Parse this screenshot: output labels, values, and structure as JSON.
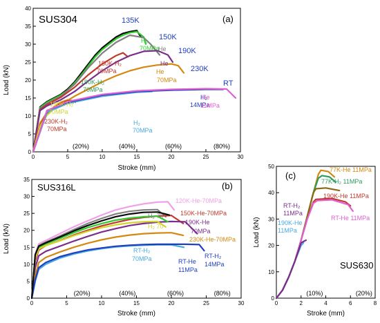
{
  "chart_data": [
    {
      "type": "line",
      "panel": "(a)",
      "material": "SUS304",
      "xlabel": "Stroke (mm)",
      "ylabel": "Load (kN)",
      "xlim": [
        0,
        30
      ],
      "ylim": [
        0,
        40
      ],
      "xticks": [
        0,
        5,
        10,
        15,
        20,
        25,
        30
      ],
      "yticks": [
        0,
        5,
        10,
        15,
        20,
        25,
        30,
        35,
        40
      ],
      "strain_markers": [
        "(20%)",
        "(40%)",
        "(60%)",
        "(80%)"
      ],
      "strain_marker_x": [
        6.9,
        13.6,
        20.3,
        27.3
      ],
      "series": [
        {
          "color": "#0a0a0a",
          "x": [
            0,
            1,
            2,
            3,
            4,
            5,
            6,
            7,
            8,
            9,
            10,
            11,
            12,
            13,
            14,
            15,
            15.6
          ],
          "y": [
            0,
            12.5,
            14,
            15,
            16,
            17.5,
            19.5,
            22,
            24.5,
            27,
            29,
            30.5,
            32,
            33,
            33.5,
            33.8,
            32
          ]
        },
        {
          "color": "#2ecc2e",
          "x": [
            0,
            1,
            2,
            3,
            4,
            5,
            6,
            7,
            8,
            9,
            10,
            11,
            12,
            13,
            14,
            15,
            16,
            16.3
          ],
          "y": [
            0,
            12.3,
            13.8,
            14.8,
            15.8,
            17.2,
            19.2,
            21.5,
            24,
            26.5,
            28.5,
            30,
            31.5,
            32.5,
            33.2,
            33.5,
            32,
            30
          ]
        },
        {
          "color": "#808080",
          "x": [
            0,
            1,
            2,
            4,
            6,
            8,
            10,
            12,
            14,
            16,
            17,
            18.3
          ],
          "y": [
            0,
            12,
            13.5,
            15.5,
            18.8,
            23.5,
            27.5,
            30.5,
            32.5,
            31.8,
            30,
            27
          ]
        },
        {
          "color": "#c0392b",
          "x": [
            0,
            1,
            2,
            4,
            6,
            8,
            10,
            12,
            13,
            13.7
          ],
          "y": [
            0,
            11.8,
            13.2,
            15.2,
            18,
            21.5,
            24.5,
            26.8,
            27.6,
            26.5
          ]
        },
        {
          "color": "#7b2d8b",
          "x": [
            0,
            1,
            2,
            4,
            6,
            8,
            10,
            12,
            14,
            16,
            18,
            19.5,
            20.2
          ],
          "y": [
            0,
            11.5,
            12.8,
            14.5,
            16.8,
            19.8,
            22.6,
            25,
            26.8,
            28,
            28.2,
            27,
            25
          ]
        },
        {
          "color": "#d4880f",
          "x": [
            0,
            1,
            2,
            4,
            6,
            8,
            10,
            12,
            14,
            16,
            18,
            20,
            21,
            21.8
          ],
          "y": [
            0,
            8,
            11,
            13.2,
            15.5,
            17.5,
            19.5,
            21.2,
            22.6,
            23.6,
            24.2,
            24.5,
            24,
            22
          ]
        },
        {
          "color": "#d4880f",
          "x": [
            0,
            1,
            2,
            3,
            4,
            5,
            5.5
          ],
          "y": [
            0,
            7.5,
            10.5,
            12.5,
            13.8,
            14.5,
            14.2
          ]
        },
        {
          "color": "#c0392b",
          "x": [
            0,
            1,
            2,
            3,
            4,
            5,
            5.6,
            6.1
          ],
          "y": [
            0,
            7.5,
            10.5,
            12.3,
            13.5,
            14.2,
            14.3,
            13.8
          ]
        },
        {
          "color": "#d4d42e",
          "x": [
            0,
            1,
            2,
            3,
            4,
            5,
            5.8
          ],
          "y": [
            0,
            7.2,
            10.2,
            12,
            13.2,
            14,
            13.6
          ]
        },
        {
          "color": "#4aa8e0",
          "x": [
            0,
            2,
            5,
            10,
            15,
            17.2
          ],
          "y": [
            0,
            11,
            13.5,
            15.5,
            16.6,
            16.8
          ]
        },
        {
          "color": "#1f3fbf",
          "x": [
            0,
            2,
            5,
            10,
            15,
            20,
            25,
            27.5
          ],
          "y": [
            0,
            11.5,
            13.8,
            15.8,
            16.8,
            17.2,
            17.4,
            17.4
          ]
        },
        {
          "color": "#e060d0",
          "x": [
            0,
            2,
            5,
            10,
            15,
            20,
            25,
            28,
            29.3
          ],
          "y": [
            0,
            11.5,
            14,
            16,
            17,
            17.4,
            17.6,
            17.5,
            15
          ]
        }
      ],
      "annotations": [
        {
          "text": "135K",
          "color": "#1f3fbf"
        },
        {
          "text": "150K",
          "color": "#1f3fbf"
        },
        {
          "text": "190K",
          "color": "#1f3fbf"
        },
        {
          "text": "230K",
          "color": "#1f3fbf"
        },
        {
          "text": "RT",
          "color": "#1f3fbf"
        },
        {
          "text": "H2",
          "color": "#2ecc2e"
        },
        {
          "text": "70MPa",
          "color": "#2ecc2e"
        },
        {
          "text": "He",
          "color": "#808080"
        },
        {
          "text": "He",
          "color": "#7b2d8b"
        },
        {
          "text": "He",
          "color": "#d4880f"
        },
        {
          "text": "70MPa",
          "color": "#d4880f"
        },
        {
          "text": "H2",
          "color": "#1f3fbf"
        },
        {
          "text": "14MPa",
          "color": "#1f3fbf"
        },
        {
          "text": "He",
          "color": "#e060d0"
        },
        {
          "text": "11MPa",
          "color": "#e060d0"
        },
        {
          "text": "H2",
          "color": "#4aa8e0"
        },
        {
          "text": "70MPa",
          "color": "#4aa8e0"
        },
        {
          "text": "230K-H2",
          "color": "#c0392b"
        },
        {
          "text": "70MPa",
          "color": "#c0392b"
        },
        {
          "text": "150K-H2",
          "color": "#c0392b"
        },
        {
          "text": "70MPa",
          "color": "#c0392b"
        },
        {
          "text": "190K-H2",
          "color": "#2a9d5a"
        },
        {
          "text": "70MPa",
          "color": "#2a9d5a"
        },
        {
          "text": "190K-H2",
          "color": "#d4d42e"
        },
        {
          "text": "70MPa",
          "color": "#d4d42e"
        }
      ]
    },
    {
      "type": "line",
      "panel": "(b)",
      "material": "SUS316L",
      "xlabel": "Stroke (mm)",
      "ylabel": "Load (kN)",
      "xlim": [
        0,
        30
      ],
      "ylim": [
        0,
        35
      ],
      "xticks": [
        0,
        5,
        10,
        15,
        20,
        25,
        30
      ],
      "yticks": [
        0,
        5,
        10,
        15,
        20,
        25,
        30,
        35
      ],
      "strain_markers": [
        "(20%)",
        "(40%)",
        "(60%)",
        "(80%)"
      ],
      "strain_marker_x": [
        7.2,
        13.7,
        20.6,
        27.3
      ],
      "series": [
        {
          "color": "#f0a0e8",
          "x": [
            0,
            0.5,
            1,
            2,
            4,
            6,
            8,
            10,
            12,
            14,
            16,
            18,
            19.5,
            20.4
          ],
          "y": [
            0,
            13,
            16,
            17,
            19,
            21,
            22.8,
            24.5,
            26,
            27,
            27.8,
            28.3,
            28.4,
            26
          ]
        },
        {
          "color": "#808080",
          "x": [
            0,
            0.5,
            1,
            2,
            4,
            6,
            8,
            10,
            12,
            14,
            16,
            18,
            19.2
          ],
          "y": [
            0,
            12.8,
            15.5,
            16.5,
            18.3,
            20.2,
            22,
            23.5,
            24.8,
            25.6,
            26,
            26.1,
            24
          ]
        },
        {
          "color": "#c0392b",
          "x": [
            0,
            0.5,
            1,
            2,
            4,
            6,
            8,
            10,
            12,
            14,
            16,
            18,
            20,
            21.7
          ],
          "y": [
            0,
            11,
            14.2,
            15.5,
            17,
            18.6,
            20,
            21.3,
            22.3,
            23.2,
            23.8,
            24.2,
            24.4,
            22
          ]
        },
        {
          "color": "#7b2d8b",
          "x": [
            0,
            0.5,
            1,
            2,
            4,
            6,
            8,
            10,
            12,
            14,
            16,
            18,
            20,
            22,
            23.7
          ],
          "y": [
            0,
            9,
            12.5,
            13.8,
            15.3,
            16.8,
            18.2,
            19.5,
            20.5,
            21.4,
            22,
            22.4,
            22.6,
            22.5,
            19
          ]
        },
        {
          "color": "#2ecc2e",
          "x": [
            0,
            0.5,
            1,
            2,
            4,
            6,
            8,
            10,
            12,
            14,
            16,
            18,
            19.5
          ],
          "y": [
            0,
            12.5,
            15,
            16,
            17.6,
            19.3,
            20.8,
            22,
            23,
            23.6,
            24,
            24.2,
            22.5
          ]
        },
        {
          "color": "#d4d42e",
          "x": [
            0,
            0.5,
            1,
            2,
            4,
            6,
            8,
            10,
            12,
            14,
            16,
            18,
            19.2
          ],
          "y": [
            0,
            11.8,
            14.5,
            15.5,
            16.9,
            18.4,
            19.7,
            20.8,
            21.6,
            22.2,
            22.5,
            22.6,
            21
          ]
        },
        {
          "color": "#d4880f",
          "x": [
            0,
            0.5,
            1,
            2,
            4,
            6,
            8,
            10,
            12,
            14,
            16,
            18,
            20,
            21.7
          ],
          "y": [
            0,
            6.5,
            10.5,
            12,
            13.6,
            15,
            16.2,
            17.2,
            18,
            18.6,
            19,
            19.2,
            19.3,
            18.5
          ]
        },
        {
          "color": "#4aa8e0",
          "x": [
            0,
            0.5,
            1,
            2,
            4,
            6,
            8,
            10,
            12,
            14,
            16,
            18,
            20,
            21.8
          ],
          "y": [
            0,
            5,
            8.5,
            10,
            11.8,
            13,
            13.9,
            14.6,
            15.1,
            15.4,
            15.6,
            15.7,
            15.7,
            15
          ]
        },
        {
          "color": "#1f3fbf",
          "x": [
            0,
            0.5,
            1,
            2,
            4,
            6,
            8,
            10,
            12,
            14,
            16,
            18,
            20,
            22,
            24,
            24.7
          ],
          "y": [
            0,
            5.5,
            9,
            10.5,
            12.2,
            13.3,
            14.2,
            14.8,
            15.3,
            15.6,
            15.8,
            15.9,
            15.9,
            15.9,
            15.8,
            14
          ]
        },
        {
          "color": "#0a0a0a",
          "x": [
            0,
            0.5,
            1,
            2,
            4,
            6,
            8,
            10,
            12,
            14,
            16,
            18,
            19.7
          ],
          "y": [
            0,
            12.8,
            15.3,
            16.3,
            18,
            19.8,
            21.4,
            22.8,
            24,
            24.8,
            25.3,
            25.4,
            24.5
          ]
        }
      ],
      "annotations": [
        {
          "text": "120K-He-70MPa",
          "color": "#f0a0e8"
        },
        {
          "text": "150K-He-70MPa",
          "color": "#c0392b"
        },
        {
          "text": "190K-He",
          "color": "#7b2d8b"
        },
        {
          "text": "70MPa",
          "color": "#7b2d8b"
        },
        {
          "text": "230K-He-70MPa",
          "color": "#d4880f"
        },
        {
          "text": "H2 70",
          "color": "#808080"
        },
        {
          "text": "H2 70",
          "color": "#d4d42e"
        },
        {
          "text": "RT-H2",
          "color": "#4aa8e0"
        },
        {
          "text": "70MPa",
          "color": "#4aa8e0"
        },
        {
          "text": "RT-He",
          "color": "#1f3fbf"
        },
        {
          "text": "11MPa",
          "color": "#1f3fbf"
        },
        {
          "text": "RT-H2",
          "color": "#1f3fbf"
        },
        {
          "text": "14MPa",
          "color": "#1f3fbf"
        }
      ]
    },
    {
      "type": "line",
      "panel": "(c)",
      "material": "SUS630",
      "xlabel": "Stroke (mm)",
      "ylabel": "Load (kN)",
      "xlim": [
        0,
        8
      ],
      "ylim": [
        0,
        50
      ],
      "xticks": [
        0,
        2,
        4,
        6,
        8
      ],
      "yticks": [
        0,
        10,
        20,
        30,
        40,
        50
      ],
      "strain_markers": [
        "(10%)",
        "(20%)"
      ],
      "strain_marker_x": [
        3.1,
        7.1
      ],
      "series": [
        {
          "color": "#d4880f",
          "x": [
            0,
            0.5,
            1,
            1.5,
            2,
            2.5,
            3,
            3.4,
            3.6,
            4.2,
            4.7
          ],
          "y": [
            0,
            3,
            8,
            14,
            22,
            31,
            40,
            47,
            48.5,
            48,
            46
          ]
        },
        {
          "color": "#2a9d5a",
          "x": [
            0,
            0.5,
            1,
            1.5,
            2,
            2.5,
            3,
            3.4,
            3.7,
            4.3,
            4.8
          ],
          "y": [
            0,
            3,
            8,
            14,
            22,
            31,
            40,
            45.5,
            46.5,
            46,
            44
          ]
        },
        {
          "color": "#8b6914",
          "x": [
            0,
            0.5,
            1,
            1.5,
            2,
            2.5,
            3,
            3.2,
            4,
            5.1
          ],
          "y": [
            0,
            3,
            8,
            14,
            22,
            31,
            40,
            41.5,
            41.8,
            40.8
          ]
        },
        {
          "color": "#c0392b",
          "x": [
            0,
            0.5,
            1,
            1.5,
            2,
            2.5,
            3,
            3.2,
            4.5,
            5.6,
            6
          ],
          "y": [
            0,
            3,
            8,
            14,
            22,
            30,
            36.5,
            37.5,
            37.8,
            36.5,
            35
          ]
        },
        {
          "color": "#e060d0",
          "x": [
            0,
            0.5,
            1,
            1.5,
            2,
            2.5,
            3,
            3.3,
            4.5,
            5.8,
            6.2
          ],
          "y": [
            0,
            3,
            8,
            14,
            22,
            30,
            36,
            37,
            37.3,
            35.5,
            33
          ]
        },
        {
          "color": "#4aa8e0",
          "x": [
            0,
            0.5,
            1,
            1.5,
            2,
            2.2
          ],
          "y": [
            0,
            3,
            8,
            14,
            20,
            21
          ]
        },
        {
          "color": "#7b2d8b",
          "x": [
            0,
            0.5,
            1,
            1.5,
            2,
            2.4
          ],
          "y": [
            0,
            3,
            8,
            14,
            21,
            22
          ]
        }
      ],
      "annotations": [
        {
          "text": "77K-He 11MPa",
          "color": "#d4880f"
        },
        {
          "text": "77K-H2 11MPa",
          "color": "#2a9d5a"
        },
        {
          "text": "190K-He 11MPa",
          "color": "#c0392b"
        },
        {
          "text": "RT-He 11MPa",
          "color": "#e060d0"
        },
        {
          "text": "RT-H2",
          "color": "#7b2d8b"
        },
        {
          "text": "11MPa",
          "color": "#7b2d8b"
        },
        {
          "text": "190K-He",
          "color": "#4aa8e0"
        },
        {
          "text": "11MPa",
          "color": "#4aa8e0"
        }
      ]
    }
  ]
}
